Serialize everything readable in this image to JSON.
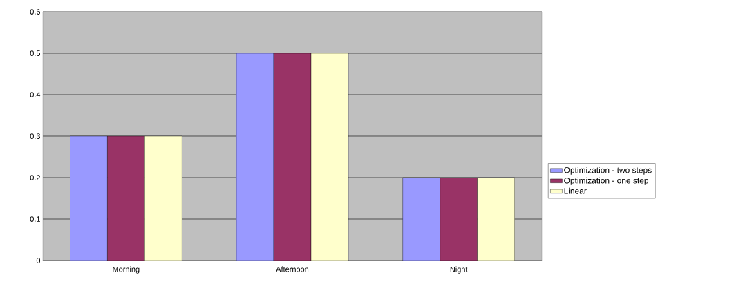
{
  "chart_data": {
    "type": "bar",
    "categories": [
      "Morning",
      "Afternoon",
      "Night"
    ],
    "series": [
      {
        "name": "Optimization - two steps",
        "color": "#9999ff",
        "values": [
          0.3,
          0.5,
          0.2
        ]
      },
      {
        "name": "Optimization - one step",
        "color": "#993366",
        "values": [
          0.3,
          0.5,
          0.2
        ]
      },
      {
        "name": "Linear",
        "color": "#ffffcc",
        "values": [
          0.3,
          0.5,
          0.2
        ]
      }
    ],
    "ylim": [
      0,
      0.6
    ],
    "yticks": [
      0,
      0.1,
      0.2,
      0.3,
      0.4,
      0.5,
      0.6
    ],
    "grid": "y",
    "legend": "right"
  }
}
